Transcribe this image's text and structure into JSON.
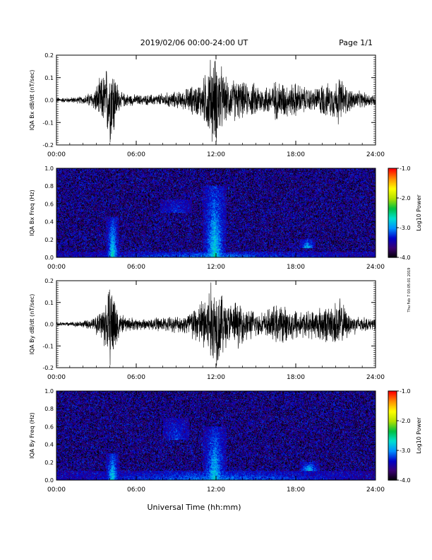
{
  "header": {
    "title": "2019/02/06  00:00-24:00 UT",
    "page_label": "Page 1/1"
  },
  "side_note": "Thu Feb 7 03:05:01 2019",
  "colors": {
    "background": "#ffffff",
    "axes": "#000000",
    "trace": "#000000"
  },
  "chart_data": [
    {
      "type": "line",
      "panel": 1,
      "ylabel": "IQA Bx dB/dt (nT/sec)",
      "x_ticks": [
        "00:00",
        "06:00",
        "12:00",
        "18:00",
        "24:00"
      ],
      "xlim_hours": [
        0,
        24
      ],
      "y_ticks": [
        "0.2",
        "0.1",
        "0.0",
        "-0.1",
        "-0.2"
      ],
      "ylim": [
        -0.2,
        0.2
      ],
      "envelope": {
        "hours": [
          0,
          1,
          2,
          2.8,
          3.2,
          3.6,
          3.9,
          4.1,
          4.3,
          4.5,
          4.8,
          5.5,
          6.5,
          7.5,
          8.5,
          9.5,
          10,
          10.5,
          11,
          11.3,
          11.6,
          11.8,
          12.0,
          12.3,
          12.6,
          13.0,
          13.5,
          14.0,
          14.5,
          15.0,
          15.5,
          16.0,
          16.5,
          17.0,
          17.5,
          18.0,
          18.5,
          19.0,
          19.5,
          20.0,
          20.5,
          21.0,
          21.3,
          21.6,
          22.0,
          22.5,
          23.0,
          23.5,
          24.0
        ],
        "amplitude_nT_per_sec": [
          0.012,
          0.014,
          0.02,
          0.05,
          0.1,
          0.14,
          0.2,
          0.22,
          0.2,
          0.11,
          0.04,
          0.03,
          0.025,
          0.03,
          0.04,
          0.045,
          0.07,
          0.08,
          0.1,
          0.16,
          0.22,
          0.22,
          0.22,
          0.2,
          0.12,
          0.1,
          0.11,
          0.09,
          0.08,
          0.09,
          0.07,
          0.08,
          0.1,
          0.1,
          0.08,
          0.09,
          0.07,
          0.06,
          0.06,
          0.09,
          0.08,
          0.1,
          0.13,
          0.09,
          0.06,
          0.05,
          0.04,
          0.035,
          0.03
        ]
      }
    },
    {
      "type": "heatmap",
      "panel": 2,
      "ylabel": "IQA Bx Freq (Hz)",
      "x_ticks": [
        "00:00",
        "06:00",
        "12:00",
        "18:00",
        "24:00"
      ],
      "xlim_hours": [
        0,
        24
      ],
      "y_ticks": [
        "1.0",
        "0.8",
        "0.6",
        "0.4",
        "0.2",
        "0.0"
      ],
      "ylim_hz": [
        0.0,
        1.0
      ],
      "colorbar": {
        "label": "Log10 Power",
        "ticks": [
          "-1.0",
          "-2.0",
          "-3.0",
          "-4.0"
        ],
        "range": [
          -4.0,
          -1.0
        ],
        "colors": [
          "#000000",
          "#3a0070",
          "#0000c8",
          "#0090ff",
          "#00e0d0",
          "#00c040",
          "#b0e000",
          "#ffff00",
          "#ff9000",
          "#ff0000"
        ]
      },
      "background_log10_power": -3.6,
      "features": [
        {
          "name": "broadband band near 0.0-0.05 Hz",
          "hours": [
            0,
            24
          ],
          "freq_hz": [
            0.0,
            0.06
          ],
          "log10_power": -3.0
        },
        {
          "name": "event at ~04:15",
          "hours": [
            3.7,
            4.7
          ],
          "freq_hz": [
            0.0,
            0.45
          ],
          "log10_power": -2.6
        },
        {
          "name": "event at ~11:50",
          "hours": [
            11.0,
            12.8
          ],
          "freq_hz": [
            0.0,
            0.8
          ],
          "log10_power": -2.6
        },
        {
          "name": "band at ~0.6 Hz",
          "hours": [
            7.8,
            10.2
          ],
          "freq_hz": [
            0.5,
            0.65
          ],
          "log10_power": -3.2
        },
        {
          "name": "band at ~0.15 Hz",
          "hours": [
            18.3,
            19.5
          ],
          "freq_hz": [
            0.1,
            0.2
          ],
          "log10_power": -2.7
        }
      ]
    },
    {
      "type": "line",
      "panel": 3,
      "ylabel": "IQA By dB/dt (nT/sec)",
      "x_ticks": [
        "00:00",
        "06:00",
        "12:00",
        "18:00",
        "24:00"
      ],
      "xlim_hours": [
        0,
        24
      ],
      "y_ticks": [
        "0.2",
        "0.1",
        "0.0",
        "-0.1",
        "-0.2"
      ],
      "ylim": [
        -0.2,
        0.2
      ],
      "envelope": {
        "hours": [
          0,
          1,
          2,
          2.8,
          3.2,
          3.6,
          3.9,
          4.1,
          4.3,
          4.5,
          4.8,
          5.5,
          6.5,
          7.5,
          8.5,
          9.5,
          10,
          10.5,
          11,
          11.3,
          11.6,
          11.8,
          12.0,
          12.3,
          12.6,
          13.0,
          13.5,
          14.0,
          14.5,
          15.0,
          15.5,
          16.0,
          16.5,
          17.0,
          17.5,
          18.0,
          18.5,
          19.0,
          19.5,
          20.0,
          20.5,
          21.0,
          21.3,
          21.6,
          22.0,
          22.5,
          23.0,
          23.5,
          24.0
        ],
        "amplitude_nT_per_sec": [
          0.01,
          0.012,
          0.018,
          0.03,
          0.07,
          0.12,
          0.18,
          0.22,
          0.21,
          0.13,
          0.05,
          0.035,
          0.03,
          0.035,
          0.04,
          0.045,
          0.08,
          0.1,
          0.14,
          0.2,
          0.22,
          0.22,
          0.22,
          0.2,
          0.14,
          0.11,
          0.12,
          0.1,
          0.08,
          0.07,
          0.06,
          0.08,
          0.1,
          0.1,
          0.08,
          0.09,
          0.07,
          0.07,
          0.08,
          0.1,
          0.09,
          0.12,
          0.14,
          0.1,
          0.06,
          0.05,
          0.04,
          0.03,
          0.03
        ]
      }
    },
    {
      "type": "heatmap",
      "panel": 4,
      "ylabel": "IQA By Freq (Hz)",
      "x_ticks": [
        "00:00",
        "06:00",
        "12:00",
        "18:00",
        "24:00"
      ],
      "xlim_hours": [
        0,
        24
      ],
      "y_ticks": [
        "1.0",
        "0.8",
        "0.6",
        "0.4",
        "0.2",
        "0.0"
      ],
      "ylim_hz": [
        0.0,
        1.0
      ],
      "colorbar": {
        "label": "Log10 Power",
        "ticks": [
          "-1.0",
          "-2.0",
          "-3.0",
          "-4.0"
        ],
        "range": [
          -4.0,
          -1.0
        ],
        "colors": [
          "#000000",
          "#3a0070",
          "#0000c8",
          "#0090ff",
          "#00e0d0",
          "#00c040",
          "#b0e000",
          "#ffff00",
          "#ff9000",
          "#ff0000"
        ]
      },
      "background_log10_power": -3.6,
      "features": [
        {
          "name": "broadband band near 0.0-0.1 Hz",
          "hours": [
            0,
            24
          ],
          "freq_hz": [
            0.0,
            0.1
          ],
          "log10_power": -3.0
        },
        {
          "name": "event at ~04:15",
          "hours": [
            3.7,
            4.7
          ],
          "freq_hz": [
            0.0,
            0.3
          ],
          "log10_power": -2.6
        },
        {
          "name": "event at ~11:50",
          "hours": [
            11.0,
            12.8
          ],
          "freq_hz": [
            0.0,
            0.6
          ],
          "log10_power": -2.7
        },
        {
          "name": "diagonal band ~0.5-0.7 Hz",
          "hours": [
            8.0,
            10.0
          ],
          "freq_hz": [
            0.45,
            0.7
          ],
          "log10_power": -3.2
        },
        {
          "name": "band at ~0.15 Hz",
          "hours": [
            18.3,
            19.8
          ],
          "freq_hz": [
            0.1,
            0.2
          ],
          "log10_power": -2.7
        }
      ]
    }
  ],
  "xlabel": "Universal Time (hh:mm)"
}
